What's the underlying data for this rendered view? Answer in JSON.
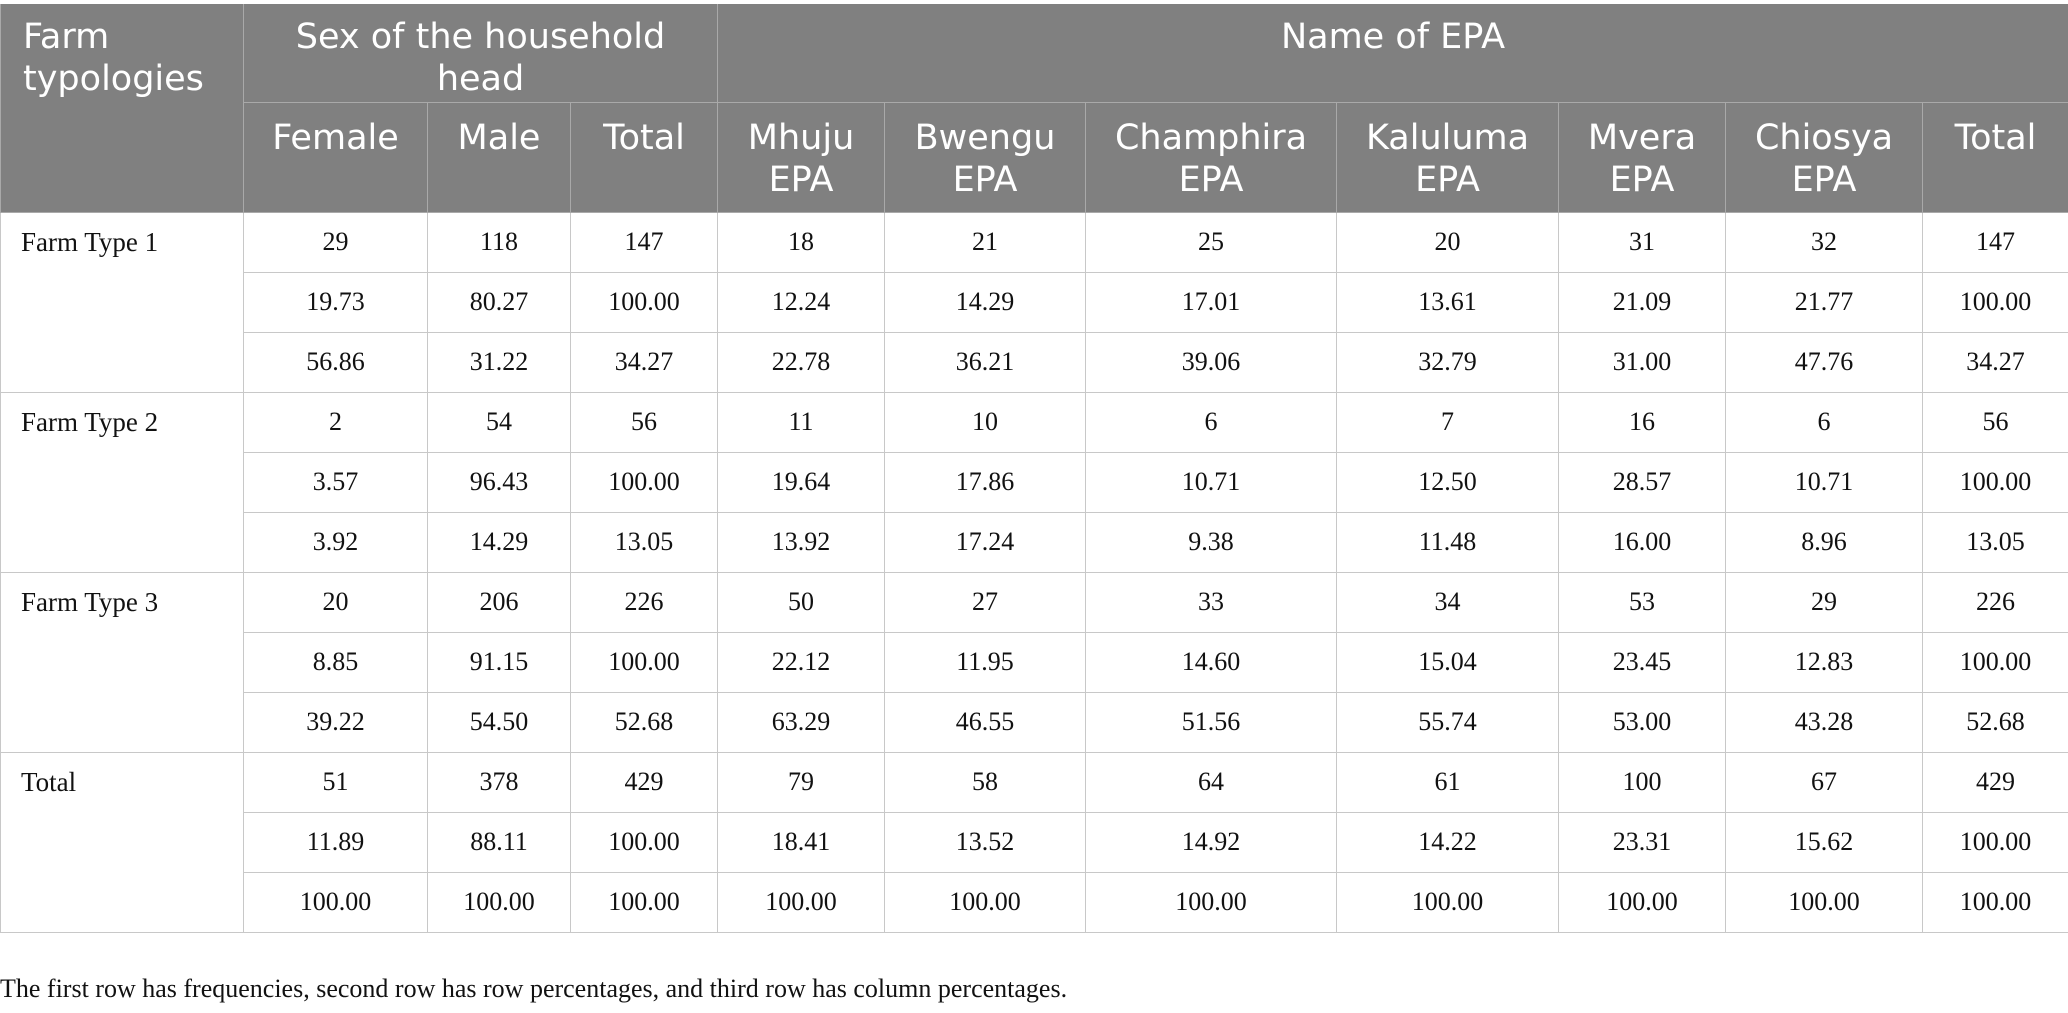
{
  "table": {
    "group_header_first": "Farm typologies",
    "group_header_sex": "Sex of the household head",
    "group_header_epa": "Name of EPA",
    "columns": [
      "Female",
      "Male",
      "Total",
      "Mhuju EPA",
      "Bwengu EPA",
      "Champhira EPA",
      "Kaluluma EPA",
      "Mvera EPA",
      "Chiosya EPA",
      "Total"
    ],
    "groups": [
      {
        "label": "Farm Type 1",
        "rows": [
          [
            "29",
            "118",
            "147",
            "18",
            "21",
            "25",
            "20",
            "31",
            "32",
            "147"
          ],
          [
            "19.73",
            "80.27",
            "100.00",
            "12.24",
            "14.29",
            "17.01",
            "13.61",
            "21.09",
            "21.77",
            "100.00"
          ],
          [
            "56.86",
            "31.22",
            "34.27",
            "22.78",
            "36.21",
            "39.06",
            "32.79",
            "31.00",
            "47.76",
            "34.27"
          ]
        ]
      },
      {
        "label": "Farm Type 2",
        "rows": [
          [
            "2",
            "54",
            "56",
            "11",
            "10",
            "6",
            "7",
            "16",
            "6",
            "56"
          ],
          [
            "3.57",
            "96.43",
            "100.00",
            "19.64",
            "17.86",
            "10.71",
            "12.50",
            "28.57",
            "10.71",
            "100.00"
          ],
          [
            "3.92",
            "14.29",
            "13.05",
            "13.92",
            "17.24",
            "9.38",
            "11.48",
            "16.00",
            "8.96",
            "13.05"
          ]
        ]
      },
      {
        "label": "Farm Type 3",
        "rows": [
          [
            "20",
            "206",
            "226",
            "50",
            "27",
            "33",
            "34",
            "53",
            "29",
            "226"
          ],
          [
            "8.85",
            "91.15",
            "100.00",
            "22.12",
            "11.95",
            "14.60",
            "15.04",
            "23.45",
            "12.83",
            "100.00"
          ],
          [
            "39.22",
            "54.50",
            "52.68",
            "63.29",
            "46.55",
            "51.56",
            "55.74",
            "53.00",
            "43.28",
            "52.68"
          ]
        ]
      },
      {
        "label": "Total",
        "rows": [
          [
            "51",
            "378",
            "429",
            "79",
            "58",
            "64",
            "61",
            "100",
            "67",
            "429"
          ],
          [
            "11.89",
            "88.11",
            "100.00",
            "18.41",
            "13.52",
            "14.92",
            "14.22",
            "23.31",
            "15.62",
            "100.00"
          ],
          [
            "100.00",
            "100.00",
            "100.00",
            "100.00",
            "100.00",
            "100.00",
            "100.00",
            "100.00",
            "100.00",
            "100.00"
          ]
        ]
      }
    ]
  },
  "footnote": "The first row has frequencies, second row has row percentages, and third row has column percentages."
}
